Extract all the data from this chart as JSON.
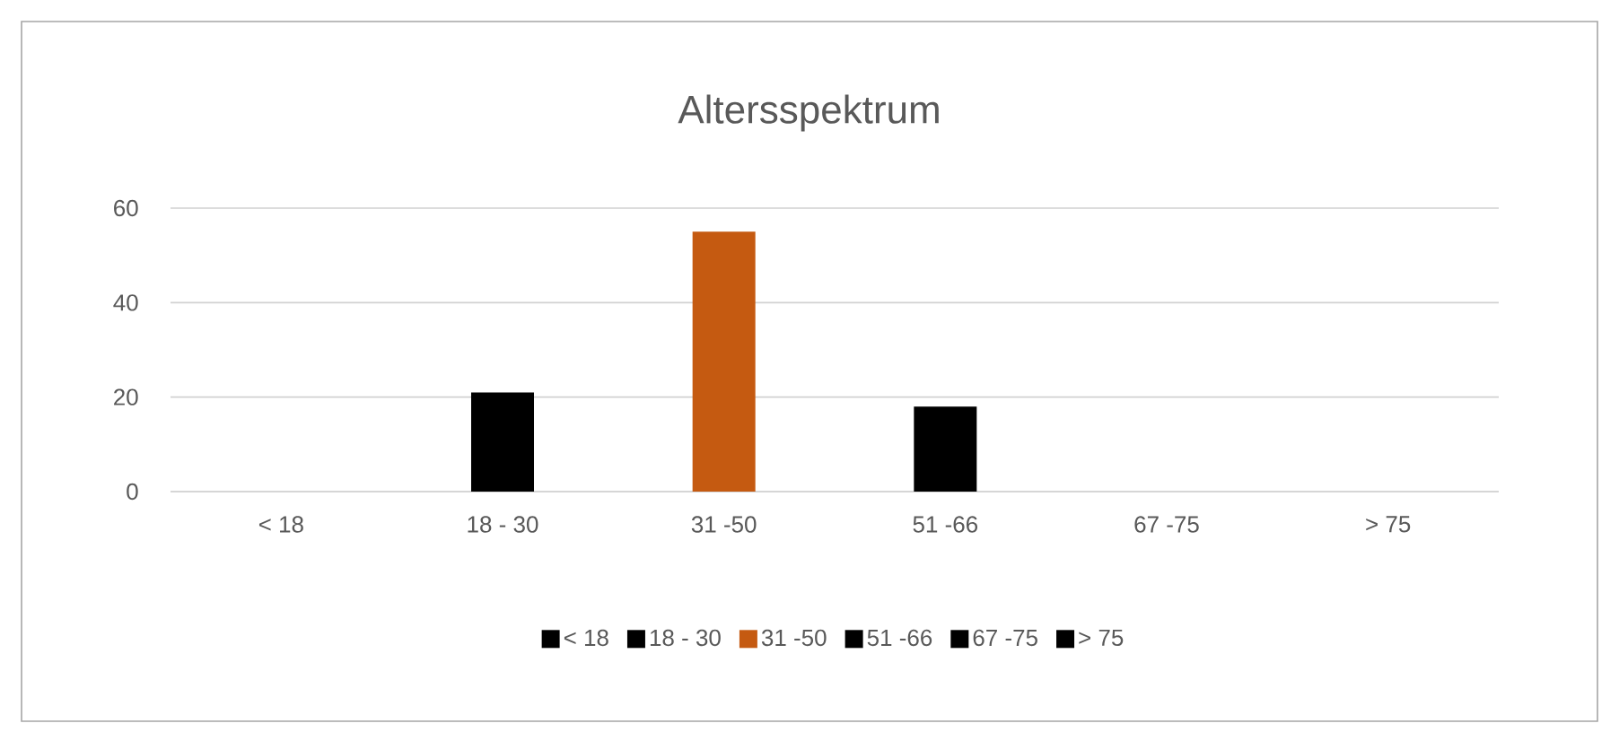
{
  "chart_data": {
    "type": "bar",
    "title": "Altersspektrum",
    "categories": [
      "< 18",
      "18 - 30",
      "31 -50",
      "51 -66",
      "67 -75",
      "> 75"
    ],
    "series": [
      {
        "name": "< 18",
        "color": "#000000",
        "values": [
          0,
          null,
          null,
          null,
          null,
          null
        ]
      },
      {
        "name": "18 - 30",
        "color": "#000000",
        "values": [
          null,
          21,
          null,
          null,
          null,
          null
        ]
      },
      {
        "name": "31 -50",
        "color": "#c55a11",
        "values": [
          null,
          null,
          55,
          null,
          null,
          null
        ]
      },
      {
        "name": "51 -66",
        "color": "#000000",
        "values": [
          null,
          null,
          null,
          18,
          null,
          null
        ]
      },
      {
        "name": "67 -75",
        "color": "#000000",
        "values": [
          null,
          null,
          null,
          null,
          0,
          null
        ]
      },
      {
        "name": "> 75",
        "color": "#000000",
        "values": [
          null,
          null,
          null,
          null,
          null,
          0
        ]
      }
    ],
    "ylim": [
      0,
      60
    ],
    "yticks": [
      0,
      20,
      40,
      60
    ],
    "grid": "y",
    "legend": "bottom"
  }
}
